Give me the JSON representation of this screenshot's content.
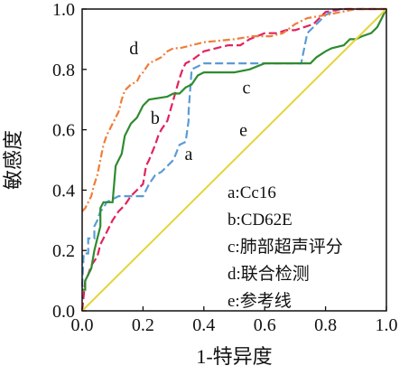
{
  "chart_data": {
    "type": "line",
    "title": "",
    "xlabel": "1-特异度",
    "ylabel": "敏感度",
    "xlim": [
      0,
      1
    ],
    "ylim": [
      0,
      1
    ],
    "x_ticks": [
      "0.0",
      "0.2",
      "0.4",
      "0.6",
      "0.8",
      "1.0"
    ],
    "y_ticks": [
      "0.0",
      "0.2",
      "0.4",
      "0.6",
      "0.8",
      "1.0"
    ],
    "grid": false,
    "legend": {
      "placement": "bottom-right",
      "entries": [
        "a:Cc16",
        "b:CD62E",
        "c:肺部超声评分",
        "d:联合检测",
        "e:参考线"
      ]
    },
    "series": [
      {
        "key": "a",
        "color": "#5b9bd5",
        "dash": "long-dash",
        "points": [
          [
            0,
            0.08
          ],
          [
            0.005,
            0.19
          ],
          [
            0.02,
            0.19
          ],
          [
            0.02,
            0.24
          ],
          [
            0.04,
            0.24
          ],
          [
            0.04,
            0.28
          ],
          [
            0.05,
            0.3
          ],
          [
            0.06,
            0.33
          ],
          [
            0.07,
            0.34
          ],
          [
            0.08,
            0.36
          ],
          [
            0.1,
            0.37
          ],
          [
            0.12,
            0.38
          ],
          [
            0.14,
            0.38
          ],
          [
            0.18,
            0.38
          ],
          [
            0.2,
            0.38
          ],
          [
            0.21,
            0.4
          ],
          [
            0.22,
            0.42
          ],
          [
            0.24,
            0.45
          ],
          [
            0.26,
            0.46
          ],
          [
            0.28,
            0.48
          ],
          [
            0.3,
            0.5
          ],
          [
            0.32,
            0.55
          ],
          [
            0.34,
            0.56
          ],
          [
            0.35,
            0.63
          ],
          [
            0.35,
            0.66
          ],
          [
            0.36,
            0.8
          ],
          [
            0.38,
            0.81
          ],
          [
            0.4,
            0.82
          ],
          [
            0.5,
            0.82
          ],
          [
            0.6,
            0.82
          ],
          [
            0.7,
            0.82
          ],
          [
            0.72,
            0.82
          ],
          [
            0.74,
            0.92
          ],
          [
            0.76,
            0.94
          ],
          [
            0.78,
            0.96
          ],
          [
            0.8,
            0.98
          ],
          [
            0.82,
            0.99
          ],
          [
            0.85,
            1.0
          ],
          [
            1,
            1.0
          ]
        ]
      },
      {
        "key": "b",
        "color": "#e0245e",
        "dash": "long-dash",
        "points": [
          [
            0,
            0.0
          ],
          [
            0.01,
            0.1
          ],
          [
            0.02,
            0.12
          ],
          [
            0.03,
            0.15
          ],
          [
            0.05,
            0.18
          ],
          [
            0.06,
            0.22
          ],
          [
            0.08,
            0.26
          ],
          [
            0.1,
            0.3
          ],
          [
            0.12,
            0.33
          ],
          [
            0.14,
            0.35
          ],
          [
            0.16,
            0.38
          ],
          [
            0.18,
            0.4
          ],
          [
            0.2,
            0.42
          ],
          [
            0.21,
            0.48
          ],
          [
            0.22,
            0.5
          ],
          [
            0.24,
            0.55
          ],
          [
            0.25,
            0.58
          ],
          [
            0.26,
            0.6
          ],
          [
            0.28,
            0.63
          ],
          [
            0.3,
            0.7
          ],
          [
            0.32,
            0.77
          ],
          [
            0.33,
            0.8
          ],
          [
            0.34,
            0.82
          ],
          [
            0.36,
            0.83
          ],
          [
            0.4,
            0.86
          ],
          [
            0.44,
            0.87
          ],
          [
            0.48,
            0.88
          ],
          [
            0.52,
            0.88
          ],
          [
            0.55,
            0.9
          ],
          [
            0.6,
            0.92
          ],
          [
            0.64,
            0.92
          ],
          [
            0.67,
            0.93
          ],
          [
            0.7,
            0.93
          ],
          [
            0.76,
            0.95
          ],
          [
            0.8,
            0.99
          ],
          [
            0.85,
            1.0
          ],
          [
            1,
            1.0
          ]
        ]
      },
      {
        "key": "c",
        "color": "#2e8b2e",
        "dash": "solid",
        "points": [
          [
            0,
            0.07
          ],
          [
            0.01,
            0.07
          ],
          [
            0.01,
            0.1
          ],
          [
            0.03,
            0.14
          ],
          [
            0.04,
            0.2
          ],
          [
            0.05,
            0.24
          ],
          [
            0.06,
            0.28
          ],
          [
            0.06,
            0.34
          ],
          [
            0.07,
            0.36
          ],
          [
            0.1,
            0.36
          ],
          [
            0.11,
            0.48
          ],
          [
            0.12,
            0.5
          ],
          [
            0.13,
            0.52
          ],
          [
            0.14,
            0.58
          ],
          [
            0.15,
            0.6
          ],
          [
            0.16,
            0.62
          ],
          [
            0.18,
            0.64
          ],
          [
            0.2,
            0.68
          ],
          [
            0.22,
            0.7
          ],
          [
            0.28,
            0.71
          ],
          [
            0.3,
            0.72
          ],
          [
            0.32,
            0.72
          ],
          [
            0.34,
            0.74
          ],
          [
            0.36,
            0.75
          ],
          [
            0.38,
            0.78
          ],
          [
            0.4,
            0.79
          ],
          [
            0.5,
            0.79
          ],
          [
            0.55,
            0.8
          ],
          [
            0.6,
            0.82
          ],
          [
            0.66,
            0.82
          ],
          [
            0.7,
            0.82
          ],
          [
            0.75,
            0.82
          ],
          [
            0.77,
            0.84
          ],
          [
            0.8,
            0.86
          ],
          [
            0.82,
            0.87
          ],
          [
            0.86,
            0.88
          ],
          [
            0.88,
            0.9
          ],
          [
            0.9,
            0.9
          ],
          [
            0.92,
            0.91
          ],
          [
            0.95,
            0.92
          ],
          [
            0.97,
            0.94
          ],
          [
            0.99,
            0.98
          ],
          [
            1,
            1.0
          ]
        ]
      },
      {
        "key": "d",
        "color": "#ef7d3a",
        "dash": "dash-dot",
        "points": [
          [
            0,
            0.33
          ],
          [
            0.01,
            0.34
          ],
          [
            0.02,
            0.36
          ],
          [
            0.03,
            0.38
          ],
          [
            0.04,
            0.42
          ],
          [
            0.05,
            0.45
          ],
          [
            0.06,
            0.5
          ],
          [
            0.07,
            0.55
          ],
          [
            0.08,
            0.58
          ],
          [
            0.09,
            0.6
          ],
          [
            0.1,
            0.62
          ],
          [
            0.11,
            0.64
          ],
          [
            0.12,
            0.66
          ],
          [
            0.13,
            0.7
          ],
          [
            0.14,
            0.73
          ],
          [
            0.15,
            0.74
          ],
          [
            0.16,
            0.75
          ],
          [
            0.18,
            0.76
          ],
          [
            0.19,
            0.78
          ],
          [
            0.2,
            0.79
          ],
          [
            0.22,
            0.82
          ],
          [
            0.24,
            0.83
          ],
          [
            0.26,
            0.84
          ],
          [
            0.28,
            0.86
          ],
          [
            0.3,
            0.87
          ],
          [
            0.32,
            0.87
          ],
          [
            0.36,
            0.88
          ],
          [
            0.4,
            0.89
          ],
          [
            0.5,
            0.9
          ],
          [
            0.56,
            0.91
          ],
          [
            0.62,
            0.91
          ],
          [
            0.66,
            0.92
          ],
          [
            0.7,
            0.95
          ],
          [
            0.72,
            0.96
          ],
          [
            0.74,
            0.97
          ],
          [
            0.8,
            0.98
          ],
          [
            0.85,
            0.99
          ],
          [
            0.9,
            1.0
          ],
          [
            1,
            1.0
          ]
        ]
      },
      {
        "key": "e",
        "color": "#e6d43c",
        "dash": "solid",
        "points": [
          [
            0,
            0
          ],
          [
            1,
            1
          ]
        ]
      }
    ],
    "curve_labels": [
      {
        "text": "a",
        "x": 0.35,
        "y": 0.5
      },
      {
        "text": "b",
        "x": 0.24,
        "y": 0.62
      },
      {
        "text": "c",
        "x": 0.54,
        "y": 0.72
      },
      {
        "text": "d",
        "x": 0.17,
        "y": 0.85
      },
      {
        "text": "e",
        "x": 0.53,
        "y": 0.58
      }
    ]
  }
}
